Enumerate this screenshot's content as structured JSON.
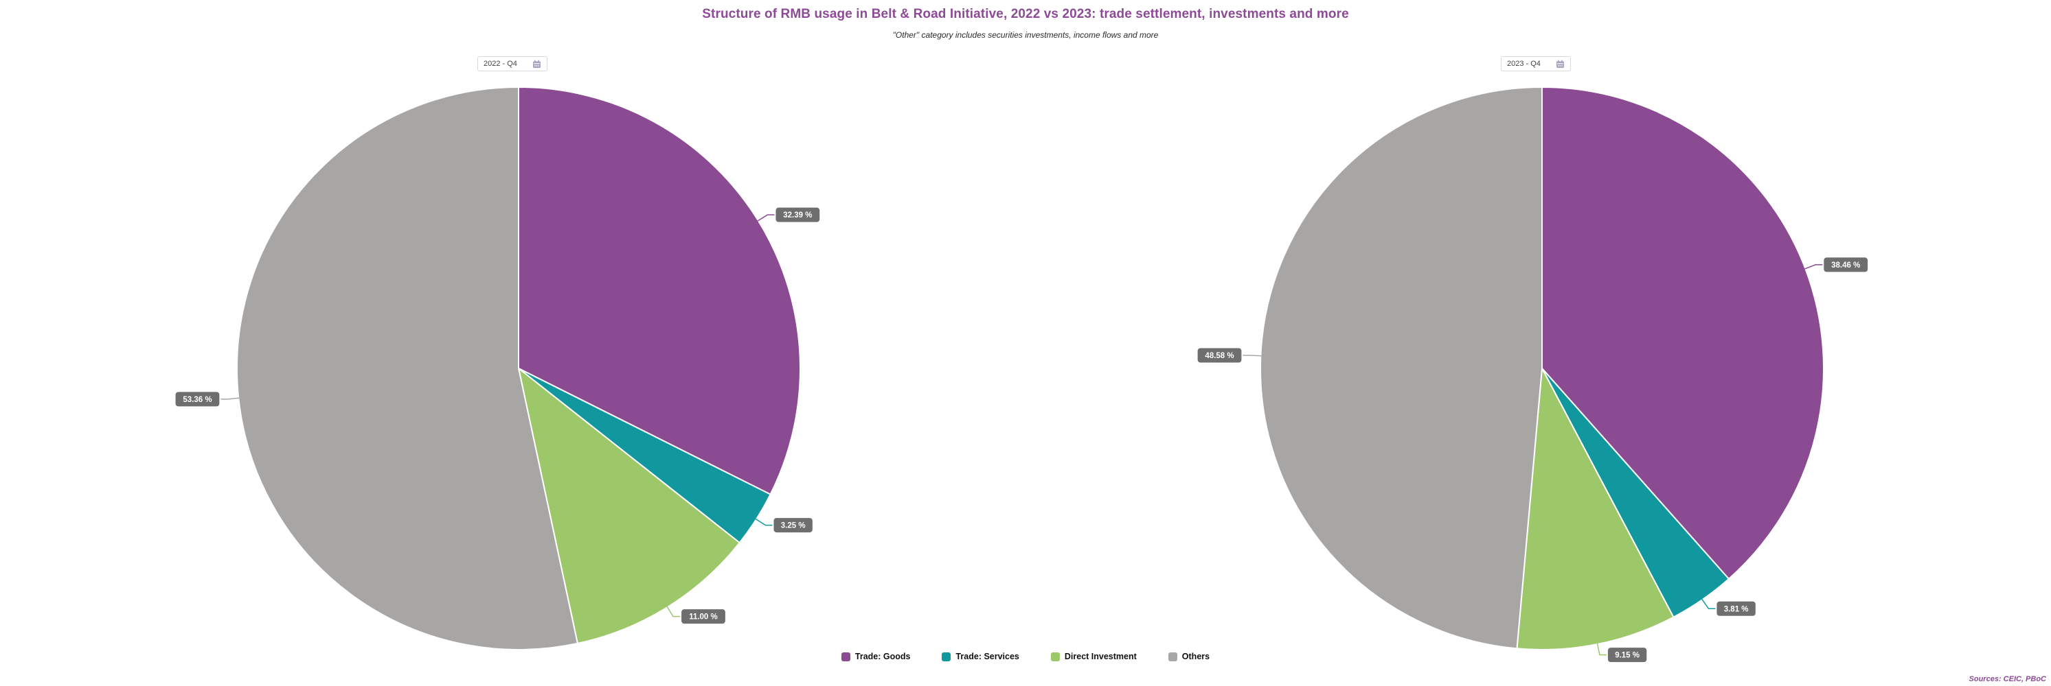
{
  "title": "Structure of RMB usage in Belt & Road Initiative, 2022 vs 2023: trade settlement, investments and more",
  "subtitle": "\"Other\" category includes securities investments, income flows and more",
  "sources": "Sources: CEIC, PBoC",
  "legend": {
    "items": [
      "Trade: Goods",
      "Trade: Services",
      "Direct Investment",
      "Others"
    ]
  },
  "colors": {
    "title": "#8d4a96",
    "trade_goods": "#8a4b92",
    "trade_services": "#10989e",
    "direct_investment": "#9cc869",
    "others": "#a8a6a5",
    "label_box": "#6e6e6e",
    "label_text": "#ffffff",
    "selector_border": "#d8d8dd",
    "calendar_icon": "#a5a5c0"
  },
  "chart_data": [
    {
      "type": "pie",
      "period": "2022 - Q4",
      "categories": [
        "Trade: Goods",
        "Trade: Services",
        "Direct Investment",
        "Others"
      ],
      "values": [
        32.39,
        3.25,
        11.0,
        53.36
      ],
      "value_labels": [
        "32.39 %",
        "3.25 %",
        "11.00 %",
        "53.36 %"
      ],
      "colors": [
        "#8a4b92",
        "#10989e",
        "#9cc869",
        "#a8a6a5"
      ],
      "start_angle_deg": 0,
      "direction": "clockwise",
      "legend_position": "bottom-center"
    },
    {
      "type": "pie",
      "period": "2023 - Q4",
      "categories": [
        "Trade: Goods",
        "Trade: Services",
        "Direct Investment",
        "Others"
      ],
      "values": [
        38.46,
        3.81,
        9.15,
        48.58
      ],
      "value_labels": [
        "38.46 %",
        "3.81 %",
        "9.15 %",
        "48.58 %"
      ],
      "colors": [
        "#8a4b92",
        "#10989e",
        "#9cc869",
        "#a8a6a5"
      ],
      "start_angle_deg": 0,
      "direction": "clockwise",
      "legend_position": "bottom-center"
    }
  ]
}
